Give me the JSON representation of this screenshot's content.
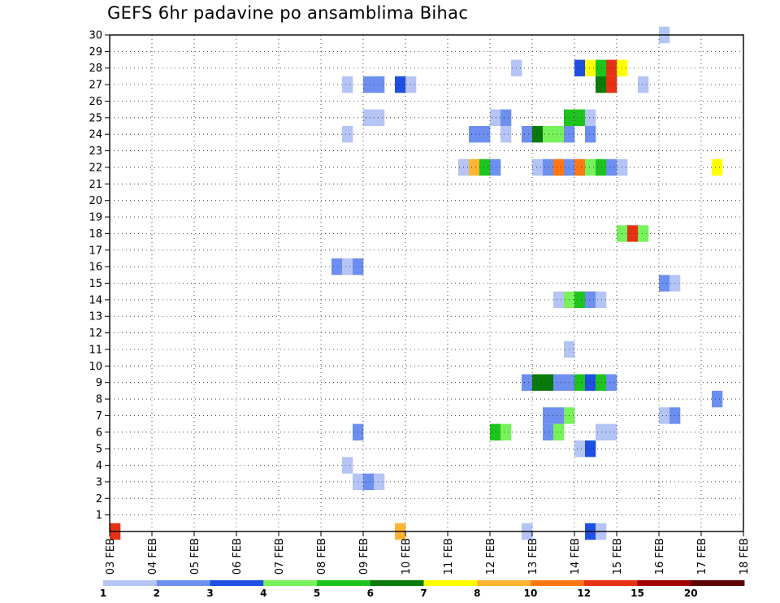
{
  "chart_data": {
    "type": "heatmap",
    "title": "GEFS 6hr padavine po ansamblima Bihac",
    "xlabel": "",
    "ylabel": "",
    "x_ticks": [
      "03 FEB",
      "04 FEB",
      "05 FEB",
      "06 FEB",
      "07 FEB",
      "08 FEB",
      "09 FEB",
      "10 FEB",
      "11 FEB",
      "12 FEB",
      "13 FEB",
      "14 FEB",
      "15 FEB",
      "16 FEB",
      "17 FEB",
      "18 FEB"
    ],
    "y_ticks": [
      "1",
      "2",
      "3",
      "4",
      "5",
      "6",
      "7",
      "8",
      "9",
      "10",
      "11",
      "12",
      "13",
      "14",
      "15",
      "16",
      "17",
      "18",
      "19",
      "20",
      "21",
      "22",
      "23",
      "24",
      "25",
      "26",
      "27",
      "28",
      "29",
      "30"
    ],
    "xlim_steps": [
      0,
      60
    ],
    "ylim": [
      0,
      30
    ],
    "step_hours": 6,
    "grid": true,
    "legend": {
      "placement": "bottom",
      "boundary_labels": [
        "1",
        "2",
        "3",
        "4",
        "5",
        "6",
        "7",
        "8",
        "10",
        "12",
        "15",
        "20"
      ],
      "colors": [
        "#b4c4f4",
        "#6c8ff0",
        "#1f4fe0",
        "#78f25a",
        "#1ec41e",
        "#0a7a0a",
        "#ffff00",
        "#ffb432",
        "#ff7814",
        "#e63214",
        "#a00000",
        "#5c0000"
      ]
    },
    "cells": [
      {
        "member": 30,
        "step": 52,
        "color": "#b4c4f4"
      },
      {
        "member": 28,
        "step": 38,
        "color": "#b4c4f4"
      },
      {
        "member": 28,
        "step": 44,
        "color": "#1f4fe0"
      },
      {
        "member": 28,
        "step": 45,
        "color": "#ffff00"
      },
      {
        "member": 28,
        "step": 46,
        "color": "#1ec41e"
      },
      {
        "member": 28,
        "step": 47,
        "color": "#e63214"
      },
      {
        "member": 28,
        "step": 48,
        "color": "#ffff00"
      },
      {
        "member": 27,
        "step": 22,
        "color": "#b4c4f4"
      },
      {
        "member": 27,
        "step": 24,
        "color": "#6c8ff0"
      },
      {
        "member": 27,
        "step": 25,
        "color": "#6c8ff0"
      },
      {
        "member": 27,
        "step": 27,
        "color": "#1f4fe0"
      },
      {
        "member": 27,
        "step": 28,
        "color": "#b4c4f4"
      },
      {
        "member": 27,
        "step": 46,
        "color": "#0a7a0a"
      },
      {
        "member": 27,
        "step": 47,
        "color": "#e63214"
      },
      {
        "member": 27,
        "step": 50,
        "color": "#b4c4f4"
      },
      {
        "member": 25,
        "step": 24,
        "color": "#b4c4f4"
      },
      {
        "member": 25,
        "step": 25,
        "color": "#b4c4f4"
      },
      {
        "member": 25,
        "step": 36,
        "color": "#b4c4f4"
      },
      {
        "member": 25,
        "step": 37,
        "color": "#6c8ff0"
      },
      {
        "member": 25,
        "step": 43,
        "color": "#1ec41e"
      },
      {
        "member": 25,
        "step": 44,
        "color": "#1ec41e"
      },
      {
        "member": 25,
        "step": 45,
        "color": "#b4c4f4"
      },
      {
        "member": 24,
        "step": 22,
        "color": "#b4c4f4"
      },
      {
        "member": 24,
        "step": 34,
        "color": "#6c8ff0"
      },
      {
        "member": 24,
        "step": 35,
        "color": "#6c8ff0"
      },
      {
        "member": 24,
        "step": 37,
        "color": "#b4c4f4"
      },
      {
        "member": 24,
        "step": 39,
        "color": "#6c8ff0"
      },
      {
        "member": 24,
        "step": 40,
        "color": "#0a7a0a"
      },
      {
        "member": 24,
        "step": 41,
        "color": "#78f25a"
      },
      {
        "member": 24,
        "step": 42,
        "color": "#78f25a"
      },
      {
        "member": 24,
        "step": 43,
        "color": "#6c8ff0"
      },
      {
        "member": 24,
        "step": 45,
        "color": "#6c8ff0"
      },
      {
        "member": 22,
        "step": 33,
        "color": "#b4c4f4"
      },
      {
        "member": 22,
        "step": 34,
        "color": "#ffb432"
      },
      {
        "member": 22,
        "step": 35,
        "color": "#1ec41e"
      },
      {
        "member": 22,
        "step": 36,
        "color": "#6c8ff0"
      },
      {
        "member": 22,
        "step": 40,
        "color": "#b4c4f4"
      },
      {
        "member": 22,
        "step": 41,
        "color": "#6c8ff0"
      },
      {
        "member": 22,
        "step": 42,
        "color": "#ff7814"
      },
      {
        "member": 22,
        "step": 43,
        "color": "#6c8ff0"
      },
      {
        "member": 22,
        "step": 44,
        "color": "#ff7814"
      },
      {
        "member": 22,
        "step": 45,
        "color": "#78f25a"
      },
      {
        "member": 22,
        "step": 46,
        "color": "#1ec41e"
      },
      {
        "member": 22,
        "step": 47,
        "color": "#6c8ff0"
      },
      {
        "member": 22,
        "step": 48,
        "color": "#b4c4f4"
      },
      {
        "member": 22,
        "step": 57,
        "color": "#ffff00"
      },
      {
        "member": 18,
        "step": 48,
        "color": "#78f25a"
      },
      {
        "member": 18,
        "step": 49,
        "color": "#e63214"
      },
      {
        "member": 18,
        "step": 50,
        "color": "#78f25a"
      },
      {
        "member": 16,
        "step": 21,
        "color": "#6c8ff0"
      },
      {
        "member": 16,
        "step": 22,
        "color": "#b4c4f4"
      },
      {
        "member": 16,
        "step": 23,
        "color": "#6c8ff0"
      },
      {
        "member": 15,
        "step": 52,
        "color": "#6c8ff0"
      },
      {
        "member": 15,
        "step": 53,
        "color": "#b4c4f4"
      },
      {
        "member": 14,
        "step": 42,
        "color": "#b4c4f4"
      },
      {
        "member": 14,
        "step": 43,
        "color": "#78f25a"
      },
      {
        "member": 14,
        "step": 44,
        "color": "#1ec41e"
      },
      {
        "member": 14,
        "step": 45,
        "color": "#6c8ff0"
      },
      {
        "member": 14,
        "step": 46,
        "color": "#b4c4f4"
      },
      {
        "member": 11,
        "step": 43,
        "color": "#b4c4f4"
      },
      {
        "member": 9,
        "step": 39,
        "color": "#6c8ff0"
      },
      {
        "member": 9,
        "step": 40,
        "color": "#0a7a0a"
      },
      {
        "member": 9,
        "step": 41,
        "color": "#0a7a0a"
      },
      {
        "member": 9,
        "step": 42,
        "color": "#6c8ff0"
      },
      {
        "member": 9,
        "step": 43,
        "color": "#6c8ff0"
      },
      {
        "member": 9,
        "step": 44,
        "color": "#1ec41e"
      },
      {
        "member": 9,
        "step": 45,
        "color": "#1f4fe0"
      },
      {
        "member": 9,
        "step": 46,
        "color": "#1ec41e"
      },
      {
        "member": 9,
        "step": 47,
        "color": "#6c8ff0"
      },
      {
        "member": 8,
        "step": 57,
        "color": "#6c8ff0"
      },
      {
        "member": 7,
        "step": 41,
        "color": "#6c8ff0"
      },
      {
        "member": 7,
        "step": 42,
        "color": "#6c8ff0"
      },
      {
        "member": 7,
        "step": 43,
        "color": "#78f25a"
      },
      {
        "member": 7,
        "step": 52,
        "color": "#b4c4f4"
      },
      {
        "member": 7,
        "step": 53,
        "color": "#6c8ff0"
      },
      {
        "member": 6,
        "step": 23,
        "color": "#6c8ff0"
      },
      {
        "member": 6,
        "step": 36,
        "color": "#1ec41e"
      },
      {
        "member": 6,
        "step": 37,
        "color": "#78f25a"
      },
      {
        "member": 6,
        "step": 41,
        "color": "#6c8ff0"
      },
      {
        "member": 6,
        "step": 42,
        "color": "#78f25a"
      },
      {
        "member": 6,
        "step": 46,
        "color": "#b4c4f4"
      },
      {
        "member": 6,
        "step": 47,
        "color": "#b4c4f4"
      },
      {
        "member": 5,
        "step": 44,
        "color": "#b4c4f4"
      },
      {
        "member": 5,
        "step": 45,
        "color": "#1f4fe0"
      },
      {
        "member": 4,
        "step": 22,
        "color": "#b4c4f4"
      },
      {
        "member": 3,
        "step": 23,
        "color": "#b4c4f4"
      },
      {
        "member": 3,
        "step": 24,
        "color": "#6c8ff0"
      },
      {
        "member": 3,
        "step": 25,
        "color": "#b4c4f4"
      },
      {
        "member": 0,
        "step": 0,
        "color": "#e63214"
      },
      {
        "member": 0,
        "step": 27,
        "color": "#ffb432"
      },
      {
        "member": 0,
        "step": 39,
        "color": "#b4c4f4"
      },
      {
        "member": 0,
        "step": 45,
        "color": "#1f4fe0"
      },
      {
        "member": 0,
        "step": 46,
        "color": "#b4c4f4"
      }
    ]
  }
}
